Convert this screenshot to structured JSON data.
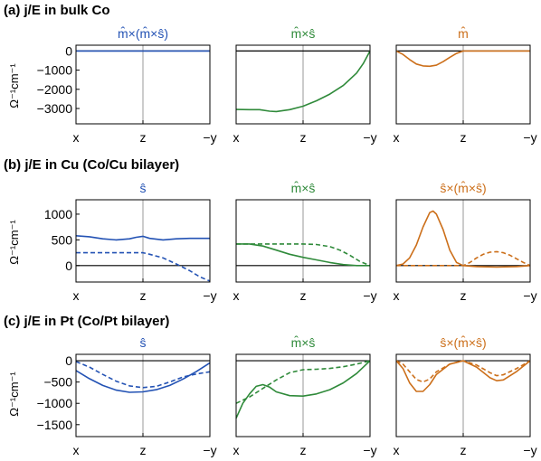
{
  "colors": {
    "blue": "#2352b4",
    "green": "#2f8a3a",
    "orange": "#cc6f1a",
    "axis": "#000000",
    "zero": "#000000",
    "mid": "#9a9a9a"
  },
  "chart_data": [
    {
      "row_title": "(a) j/E in bulk Co",
      "ylabel": "Ω⁻¹cm⁻¹",
      "ylim": [
        -3800,
        300
      ],
      "yticks": [
        0,
        -1000,
        -2000,
        -3000
      ],
      "ytick_labels": [
        "0",
        "−1000",
        "−2000",
        "−3000"
      ],
      "panels": [
        {
          "type": "line",
          "title": "m̂×(m̂×ŝ)",
          "color": "blue",
          "xtick_labels": [
            "x",
            "z",
            "−y"
          ],
          "series": [
            {
              "style": "solid",
              "x": [
                0,
                1,
                2
              ],
              "y": [
                0,
                0,
                0
              ]
            }
          ]
        },
        {
          "type": "line",
          "title": "m̂×ŝ",
          "color": "green",
          "xtick_labels": [
            "x",
            "z",
            "−y"
          ],
          "series": [
            {
              "style": "solid",
              "x": [
                0,
                0.2,
                0.35,
                0.5,
                0.6,
                0.8,
                1.0,
                1.2,
                1.4,
                1.6,
                1.8,
                1.9,
                2.0
              ],
              "y": [
                -3050,
                -3060,
                -3060,
                -3140,
                -3160,
                -3060,
                -2880,
                -2600,
                -2250,
                -1800,
                -1150,
                -650,
                0
              ]
            }
          ]
        },
        {
          "type": "line",
          "title": "m̂",
          "color": "orange",
          "xtick_labels": [
            "x",
            "z",
            "−y"
          ],
          "series": [
            {
              "style": "solid",
              "x": [
                0,
                0.1,
                0.2,
                0.3,
                0.4,
                0.5,
                0.6,
                0.7,
                0.8,
                0.9,
                1.0,
                1.2,
                1.5,
                2.0
              ],
              "y": [
                0,
                -180,
                -450,
                -680,
                -780,
                -800,
                -740,
                -560,
                -330,
                -130,
                0,
                0,
                0,
                0
              ]
            }
          ]
        }
      ]
    },
    {
      "row_title": "(b) j/E in Cu (Co/Cu bilayer)",
      "ylabel": "Ω⁻¹cm⁻¹",
      "ylim": [
        -320,
        1280
      ],
      "yticks": [
        0,
        500,
        1000
      ],
      "ytick_labels": [
        "0",
        "500",
        "1000"
      ],
      "panels": [
        {
          "type": "line",
          "title": "ŝ",
          "color": "blue",
          "xtick_labels": [
            "x",
            "z",
            "−y"
          ],
          "series": [
            {
              "style": "solid",
              "x": [
                0,
                0.2,
                0.4,
                0.6,
                0.8,
                0.9,
                1.0,
                1.1,
                1.3,
                1.5,
                1.7,
                2.0
              ],
              "y": [
                580,
                560,
                520,
                500,
                520,
                550,
                570,
                530,
                500,
                520,
                530,
                530
              ]
            },
            {
              "style": "dashed",
              "x": [
                0,
                0.3,
                0.6,
                0.9,
                1.0,
                1.1,
                1.3,
                1.5,
                1.7,
                1.85,
                2.0
              ],
              "y": [
                250,
                250,
                250,
                250,
                250,
                220,
                150,
                30,
                -100,
                -220,
                -300
              ]
            }
          ]
        },
        {
          "type": "line",
          "title": "m̂×ŝ",
          "color": "green",
          "xtick_labels": [
            "x",
            "z",
            "−y"
          ],
          "series": [
            {
              "style": "solid",
              "x": [
                0,
                0.2,
                0.4,
                0.6,
                0.8,
                1.0,
                1.2,
                1.4,
                1.6,
                1.8,
                2.0
              ],
              "y": [
                420,
                420,
                380,
                300,
                220,
                160,
                110,
                60,
                20,
                0,
                0
              ]
            },
            {
              "style": "dashed",
              "x": [
                0,
                0.2,
                0.4,
                0.6,
                0.8,
                1.0,
                1.2,
                1.4,
                1.55,
                1.7,
                1.85,
                2.0
              ],
              "y": [
                420,
                420,
                420,
                420,
                420,
                420,
                410,
                370,
                300,
                200,
                80,
                0
              ]
            }
          ]
        },
        {
          "type": "line",
          "title": "ŝ×(m̂×ŝ)",
          "color": "orange",
          "xtick_labels": [
            "x",
            "z",
            "−y"
          ],
          "series": [
            {
              "style": "solid",
              "x": [
                0,
                0.1,
                0.2,
                0.3,
                0.4,
                0.5,
                0.55,
                0.6,
                0.7,
                0.8,
                0.9,
                1.0,
                1.2,
                1.5,
                1.8,
                2.0
              ],
              "y": [
                0,
                30,
                150,
                400,
                750,
                1030,
                1060,
                1000,
                700,
                300,
                60,
                0,
                -20,
                -30,
                -20,
                0
              ]
            },
            {
              "style": "dashed",
              "x": [
                0,
                0.5,
                1.0,
                1.1,
                1.2,
                1.3,
                1.4,
                1.5,
                1.6,
                1.7,
                1.8,
                1.9,
                2.0
              ],
              "y": [
                0,
                0,
                0,
                60,
                150,
                220,
                260,
                270,
                250,
                200,
                130,
                60,
                0
              ]
            }
          ]
        }
      ]
    },
    {
      "row_title": "(c) j/E in Pt (Co/Pt bilayer)",
      "ylabel": "Ω⁻¹cm⁻¹",
      "ylim": [
        -1780,
        150
      ],
      "yticks": [
        0,
        -500,
        -1000,
        -1500
      ],
      "ytick_labels": [
        "0",
        "−500",
        "−1000",
        "−1500"
      ],
      "panels": [
        {
          "type": "line",
          "title": "ŝ",
          "color": "blue",
          "xtick_labels": [
            "x",
            "z",
            "−y"
          ],
          "series": [
            {
              "style": "solid",
              "x": [
                0,
                0.2,
                0.4,
                0.6,
                0.8,
                1.0,
                1.2,
                1.4,
                1.6,
                1.8,
                2.0
              ],
              "y": [
                -230,
                -420,
                -580,
                -690,
                -740,
                -730,
                -680,
                -580,
                -430,
                -250,
                -50
              ]
            },
            {
              "style": "dashed",
              "x": [
                0,
                0.2,
                0.4,
                0.6,
                0.8,
                1.0,
                1.2,
                1.4,
                1.6,
                1.8,
                2.0
              ],
              "y": [
                -20,
                -150,
                -320,
                -480,
                -590,
                -630,
                -600,
                -500,
                -380,
                -310,
                -260
              ]
            }
          ]
        },
        {
          "type": "line",
          "title": "m̂×ŝ",
          "color": "green",
          "xtick_labels": [
            "x",
            "z",
            "−y"
          ],
          "series": [
            {
              "style": "solid",
              "x": [
                0,
                0.1,
                0.2,
                0.3,
                0.4,
                0.5,
                0.6,
                0.8,
                1.0,
                1.2,
                1.4,
                1.6,
                1.8,
                2.0
              ],
              "y": [
                -1350,
                -1000,
                -780,
                -600,
                -560,
                -620,
                -730,
                -820,
                -830,
                -780,
                -680,
                -520,
                -300,
                0
              ]
            },
            {
              "style": "dashed",
              "x": [
                0,
                0.2,
                0.4,
                0.6,
                0.8,
                1.0,
                1.2,
                1.4,
                1.6,
                1.8,
                2.0
              ],
              "y": [
                -1000,
                -850,
                -650,
                -450,
                -280,
                -210,
                -200,
                -180,
                -140,
                -80,
                0
              ]
            }
          ]
        },
        {
          "type": "line",
          "title": "ŝ×(m̂×ŝ)",
          "color": "orange",
          "xtick_labels": [
            "x",
            "z",
            "−y"
          ],
          "series": [
            {
              "style": "solid",
              "x": [
                0,
                0.1,
                0.2,
                0.3,
                0.4,
                0.5,
                0.6,
                0.8,
                1.0,
                1.2,
                1.4,
                1.5,
                1.6,
                1.8,
                2.0
              ],
              "y": [
                0,
                -180,
                -520,
                -720,
                -720,
                -560,
                -320,
                -80,
                0,
                -150,
                -400,
                -470,
                -450,
                -250,
                0
              ]
            },
            {
              "style": "dashed",
              "x": [
                0,
                0.1,
                0.2,
                0.3,
                0.4,
                0.5,
                0.6,
                0.8,
                1.0,
                1.2,
                1.4,
                1.5,
                1.6,
                1.8,
                2.0
              ],
              "y": [
                0,
                -80,
                -260,
                -440,
                -500,
                -430,
                -260,
                -80,
                0,
                -100,
                -280,
                -350,
                -330,
                -180,
                0
              ]
            }
          ]
        }
      ]
    }
  ]
}
